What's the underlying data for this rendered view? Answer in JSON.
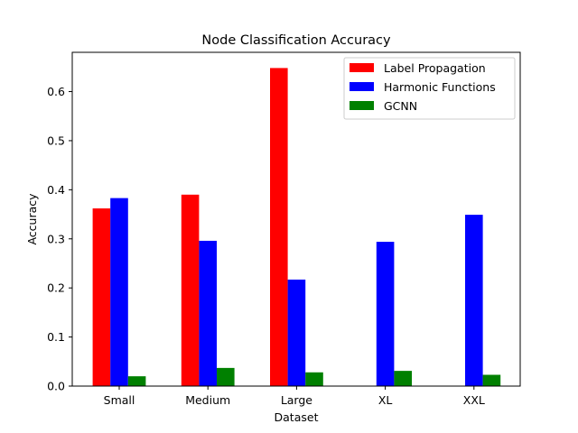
{
  "chart_data": {
    "type": "bar",
    "title": "Node Classification Accuracy",
    "xlabel": "Dataset",
    "ylabel": "Accuracy",
    "categories": [
      "Small",
      "Medium",
      "Large",
      "XL",
      "XXL"
    ],
    "series": [
      {
        "name": "Label Propagation",
        "color": "#ff0000",
        "values": [
          0.362,
          0.39,
          0.648,
          null,
          null
        ]
      },
      {
        "name": "Harmonic Functions",
        "color": "#0000ff",
        "values": [
          0.383,
          0.296,
          0.217,
          0.294,
          0.349
        ]
      },
      {
        "name": "GCNN",
        "color": "#008000",
        "values": [
          0.02,
          0.037,
          0.028,
          0.031,
          0.023
        ]
      }
    ],
    "ylim": [
      0,
      0.68
    ],
    "yticks": [
      0.0,
      0.1,
      0.2,
      0.3,
      0.4,
      0.5,
      0.6
    ],
    "ytick_labels": [
      "0.0",
      "0.1",
      "0.2",
      "0.3",
      "0.4",
      "0.5",
      "0.6"
    ],
    "grid": false,
    "legend_position": "top-right"
  }
}
